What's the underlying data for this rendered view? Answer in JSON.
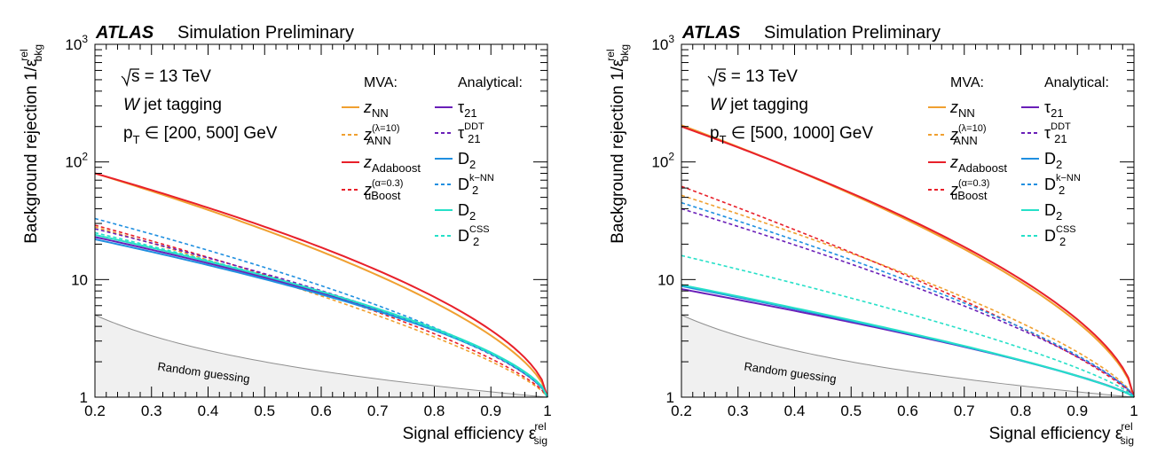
{
  "chart_data": [
    {
      "type": "line",
      "header": {
        "brand": "ATLAS",
        "label": "Simulation Preliminary"
      },
      "xlabel": {
        "main": "Signal efficiency ε",
        "sup": "rel",
        "sub": "sig"
      },
      "ylabel": {
        "main": "Background rejection 1/ε",
        "sup": "rel",
        "sub": "bkg"
      },
      "xlim": [
        0.2,
        1.0
      ],
      "ylim": [
        1,
        1000
      ],
      "yscale": "log",
      "xticks": [
        "0.2",
        "0.3",
        "0.4",
        "0.5",
        "0.6",
        "0.7",
        "0.8",
        "0.9",
        "1"
      ],
      "yticks": [
        {
          "base": "1",
          "exp": ""
        },
        {
          "base": "10",
          "exp": ""
        },
        {
          "base": "10",
          "exp": "2"
        },
        {
          "base": "10",
          "exp": "3"
        }
      ],
      "info": {
        "sqrt_s": "s = 13 TeV",
        "tagging_w": "W",
        "tagging_rest": " jet tagging",
        "pt_label": "p",
        "pt_sub": "T",
        "pt_range": "∈  [200, 500] GeV"
      },
      "legend": {
        "mva_header": "MVA:",
        "analytical_header": "Analytical:",
        "mva": [
          {
            "main": "z",
            "sub": "NN",
            "sup": "",
            "color": "#f0a030",
            "dash": false
          },
          {
            "main": "z",
            "sub": "ANN",
            "sup": "(λ=10)",
            "color": "#f0a030",
            "dash": true
          },
          {
            "main": "z",
            "sub": "Adaboost",
            "sup": "",
            "color": "#e8202a",
            "dash": false
          },
          {
            "main": "z",
            "sub": "uBoost",
            "sup": "(α=0.3)",
            "color": "#e8202a",
            "dash": true
          }
        ],
        "analytical": [
          {
            "main": "τ",
            "sub": "21",
            "sup": "",
            "color": "#6a1fb8",
            "dash": false
          },
          {
            "main": "τ",
            "sub": "21",
            "sup": "DDT",
            "color": "#6a1fb8",
            "dash": true
          },
          {
            "main": "D",
            "sub": "2",
            "sup": "",
            "color": "#1f8fe0",
            "dash": false
          },
          {
            "main": "D",
            "sub": "2",
            "sup": "k−NN",
            "color": "#1f8fe0",
            "dash": true
          },
          {
            "main": "D",
            "sub": "2",
            "sup": "",
            "color": "#26e0c8",
            "dash": false
          },
          {
            "main": "D",
            "sub": "2",
            "sup": "CSS",
            "color": "#26e0c8",
            "dash": true
          }
        ]
      },
      "random_guessing_label": "Random guessing",
      "series": [
        {
          "name": "zNN",
          "color": "#f0a030",
          "dash": false,
          "y_start": 80,
          "curve": 0.62
        },
        {
          "name": "zANN",
          "color": "#f0a030",
          "dash": true,
          "y_start": 28,
          "curve": 0.75
        },
        {
          "name": "zAdaboost",
          "color": "#e8202a",
          "dash": false,
          "y_start": 80,
          "curve": 0.58
        },
        {
          "name": "zuBoost",
          "color": "#e8202a",
          "dash": true,
          "y_start": 29,
          "curve": 0.72
        },
        {
          "name": "tau21",
          "color": "#6a1fb8",
          "dash": false,
          "y_start": 23,
          "curve": 0.62
        },
        {
          "name": "tau21DDT",
          "color": "#6a1fb8",
          "dash": true,
          "y_start": 27,
          "curve": 0.66
        },
        {
          "name": "D2",
          "color": "#1f8fe0",
          "dash": false,
          "y_start": 22,
          "curve": 0.62
        },
        {
          "name": "D2kNN",
          "color": "#1f8fe0",
          "dash": true,
          "y_start": 33,
          "curve": 0.68
        },
        {
          "name": "D2b",
          "color": "#26e0c8",
          "dash": false,
          "y_start": 24,
          "curve": 0.62
        },
        {
          "name": "D2CSS",
          "color": "#26e0c8",
          "dash": true,
          "y_start": 25,
          "curve": 0.64
        }
      ]
    },
    {
      "type": "line",
      "header": {
        "brand": "ATLAS",
        "label": "Simulation Preliminary"
      },
      "xlabel": {
        "main": "Signal efficiency ε",
        "sup": "rel",
        "sub": "sig"
      },
      "ylabel": {
        "main": "Background rejection 1/ε",
        "sup": "rel",
        "sub": "bkg"
      },
      "xlim": [
        0.2,
        1.0
      ],
      "ylim": [
        1,
        1000
      ],
      "yscale": "log",
      "xticks": [
        "0.2",
        "0.3",
        "0.4",
        "0.5",
        "0.6",
        "0.7",
        "0.8",
        "0.9",
        "1"
      ],
      "yticks": [
        {
          "base": "1",
          "exp": ""
        },
        {
          "base": "10",
          "exp": ""
        },
        {
          "base": "10",
          "exp": "2"
        },
        {
          "base": "10",
          "exp": "3"
        }
      ],
      "info": {
        "sqrt_s": "s = 13 TeV",
        "tagging_w": "W",
        "tagging_rest": " jet tagging",
        "pt_label": "p",
        "pt_sub": "T",
        "pt_range": "∈  [500, 1000] GeV"
      },
      "legend": {
        "mva_header": "MVA:",
        "analytical_header": "Analytical:",
        "mva": [
          {
            "main": "z",
            "sub": "NN",
            "sup": "",
            "color": "#f0a030",
            "dash": false
          },
          {
            "main": "z",
            "sub": "ANN",
            "sup": "(λ=10)",
            "color": "#f0a030",
            "dash": true
          },
          {
            "main": "z",
            "sub": "Adaboost",
            "sup": "",
            "color": "#e8202a",
            "dash": false
          },
          {
            "main": "z",
            "sub": "uBoost",
            "sup": "(α=0.3)",
            "color": "#e8202a",
            "dash": true
          }
        ],
        "analytical": [
          {
            "main": "τ",
            "sub": "21",
            "sup": "",
            "color": "#6a1fb8",
            "dash": false
          },
          {
            "main": "τ",
            "sub": "21",
            "sup": "DDT",
            "color": "#6a1fb8",
            "dash": true
          },
          {
            "main": "D",
            "sub": "2",
            "sup": "",
            "color": "#1f8fe0",
            "dash": false
          },
          {
            "main": "D",
            "sub": "2",
            "sup": "k−NN",
            "color": "#1f8fe0",
            "dash": true
          },
          {
            "main": "D",
            "sub": "2",
            "sup": "",
            "color": "#26e0c8",
            "dash": false
          },
          {
            "main": "D",
            "sub": "2",
            "sup": "CSS",
            "color": "#26e0c8",
            "dash": true
          }
        ]
      },
      "random_guessing_label": "Random guessing",
      "series": [
        {
          "name": "zNN",
          "color": "#f0a030",
          "dash": false,
          "y_start": 205,
          "curve": 0.62
        },
        {
          "name": "zANN",
          "color": "#f0a030",
          "dash": true,
          "y_start": 52,
          "curve": 0.72
        },
        {
          "name": "zAdaboost",
          "color": "#e8202a",
          "dash": false,
          "y_start": 200,
          "curve": 0.6
        },
        {
          "name": "zuBoost",
          "color": "#e8202a",
          "dash": true,
          "y_start": 62,
          "curve": 0.8
        },
        {
          "name": "tau21",
          "color": "#6a1fb8",
          "dash": false,
          "y_start": 8.3,
          "curve": 0.78
        },
        {
          "name": "tau21DDT",
          "color": "#6a1fb8",
          "dash": true,
          "y_start": 40,
          "curve": 0.74
        },
        {
          "name": "D2",
          "color": "#1f8fe0",
          "dash": false,
          "y_start": 8.8,
          "curve": 0.8
        },
        {
          "name": "D2kNN",
          "color": "#1f8fe0",
          "dash": true,
          "y_start": 45,
          "curve": 0.74
        },
        {
          "name": "D2b",
          "color": "#26e0c8",
          "dash": false,
          "y_start": 9.0,
          "curve": 0.8
        },
        {
          "name": "D2CSS",
          "color": "#26e0c8",
          "dash": true,
          "y_start": 16,
          "curve": 0.76
        }
      ]
    }
  ]
}
